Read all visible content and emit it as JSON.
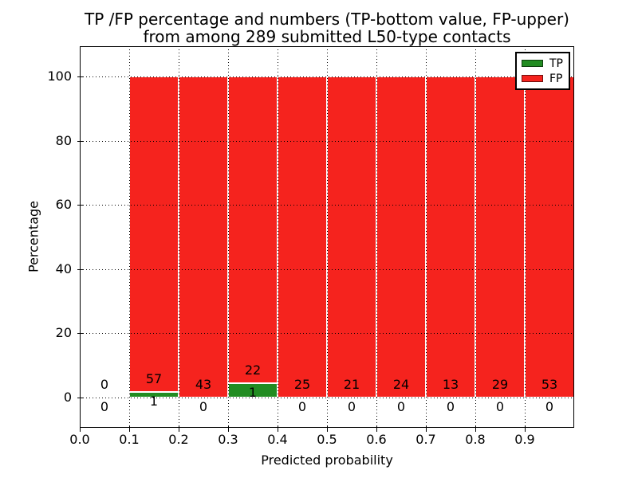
{
  "figure": {
    "title_line1": "TP /FP percentage and numbers (TP-bottom value, FP-upper)",
    "title_line2": "from among 289 submitted L50-type contacts"
  },
  "chart_data": {
    "type": "bar",
    "subtype": "stacked-percentage-histogram",
    "title": "TP /FP percentage and numbers (TP-bottom value, FP-upper)\nfrom among 289 submitted L50-type contacts",
    "xlabel": "Predicted probability",
    "ylabel": "Percentage",
    "total_contacts": 289,
    "xlim": [
      0.0,
      1.0
    ],
    "ylim": [
      -9.5,
      109.5
    ],
    "x_ticks": [
      "0.0",
      "0.1",
      "0.2",
      "0.3",
      "0.4",
      "0.5",
      "0.6",
      "0.7",
      "0.8",
      "0.9"
    ],
    "y_ticks": [
      0,
      20,
      40,
      60,
      80,
      100
    ],
    "grid": true,
    "grid_style": "dotted",
    "bin_width": 0.1,
    "bin_starts": [
      0.0,
      0.1,
      0.2,
      0.3,
      0.4,
      0.5,
      0.6,
      0.7,
      0.8,
      0.9
    ],
    "series": [
      {
        "name": "TP",
        "color": "#228c22",
        "counts": [
          0,
          1,
          0,
          1,
          0,
          0,
          0,
          0,
          0,
          0
        ]
      },
      {
        "name": "FP",
        "color": "#f5231e",
        "counts": [
          0,
          57,
          43,
          22,
          25,
          21,
          24,
          13,
          29,
          53
        ]
      }
    ],
    "bar_edge_color": "#ffffff",
    "bars_stacked_to_percent": 100,
    "legend": {
      "position": "upper right",
      "entries": [
        "TP",
        "FP"
      ]
    }
  }
}
